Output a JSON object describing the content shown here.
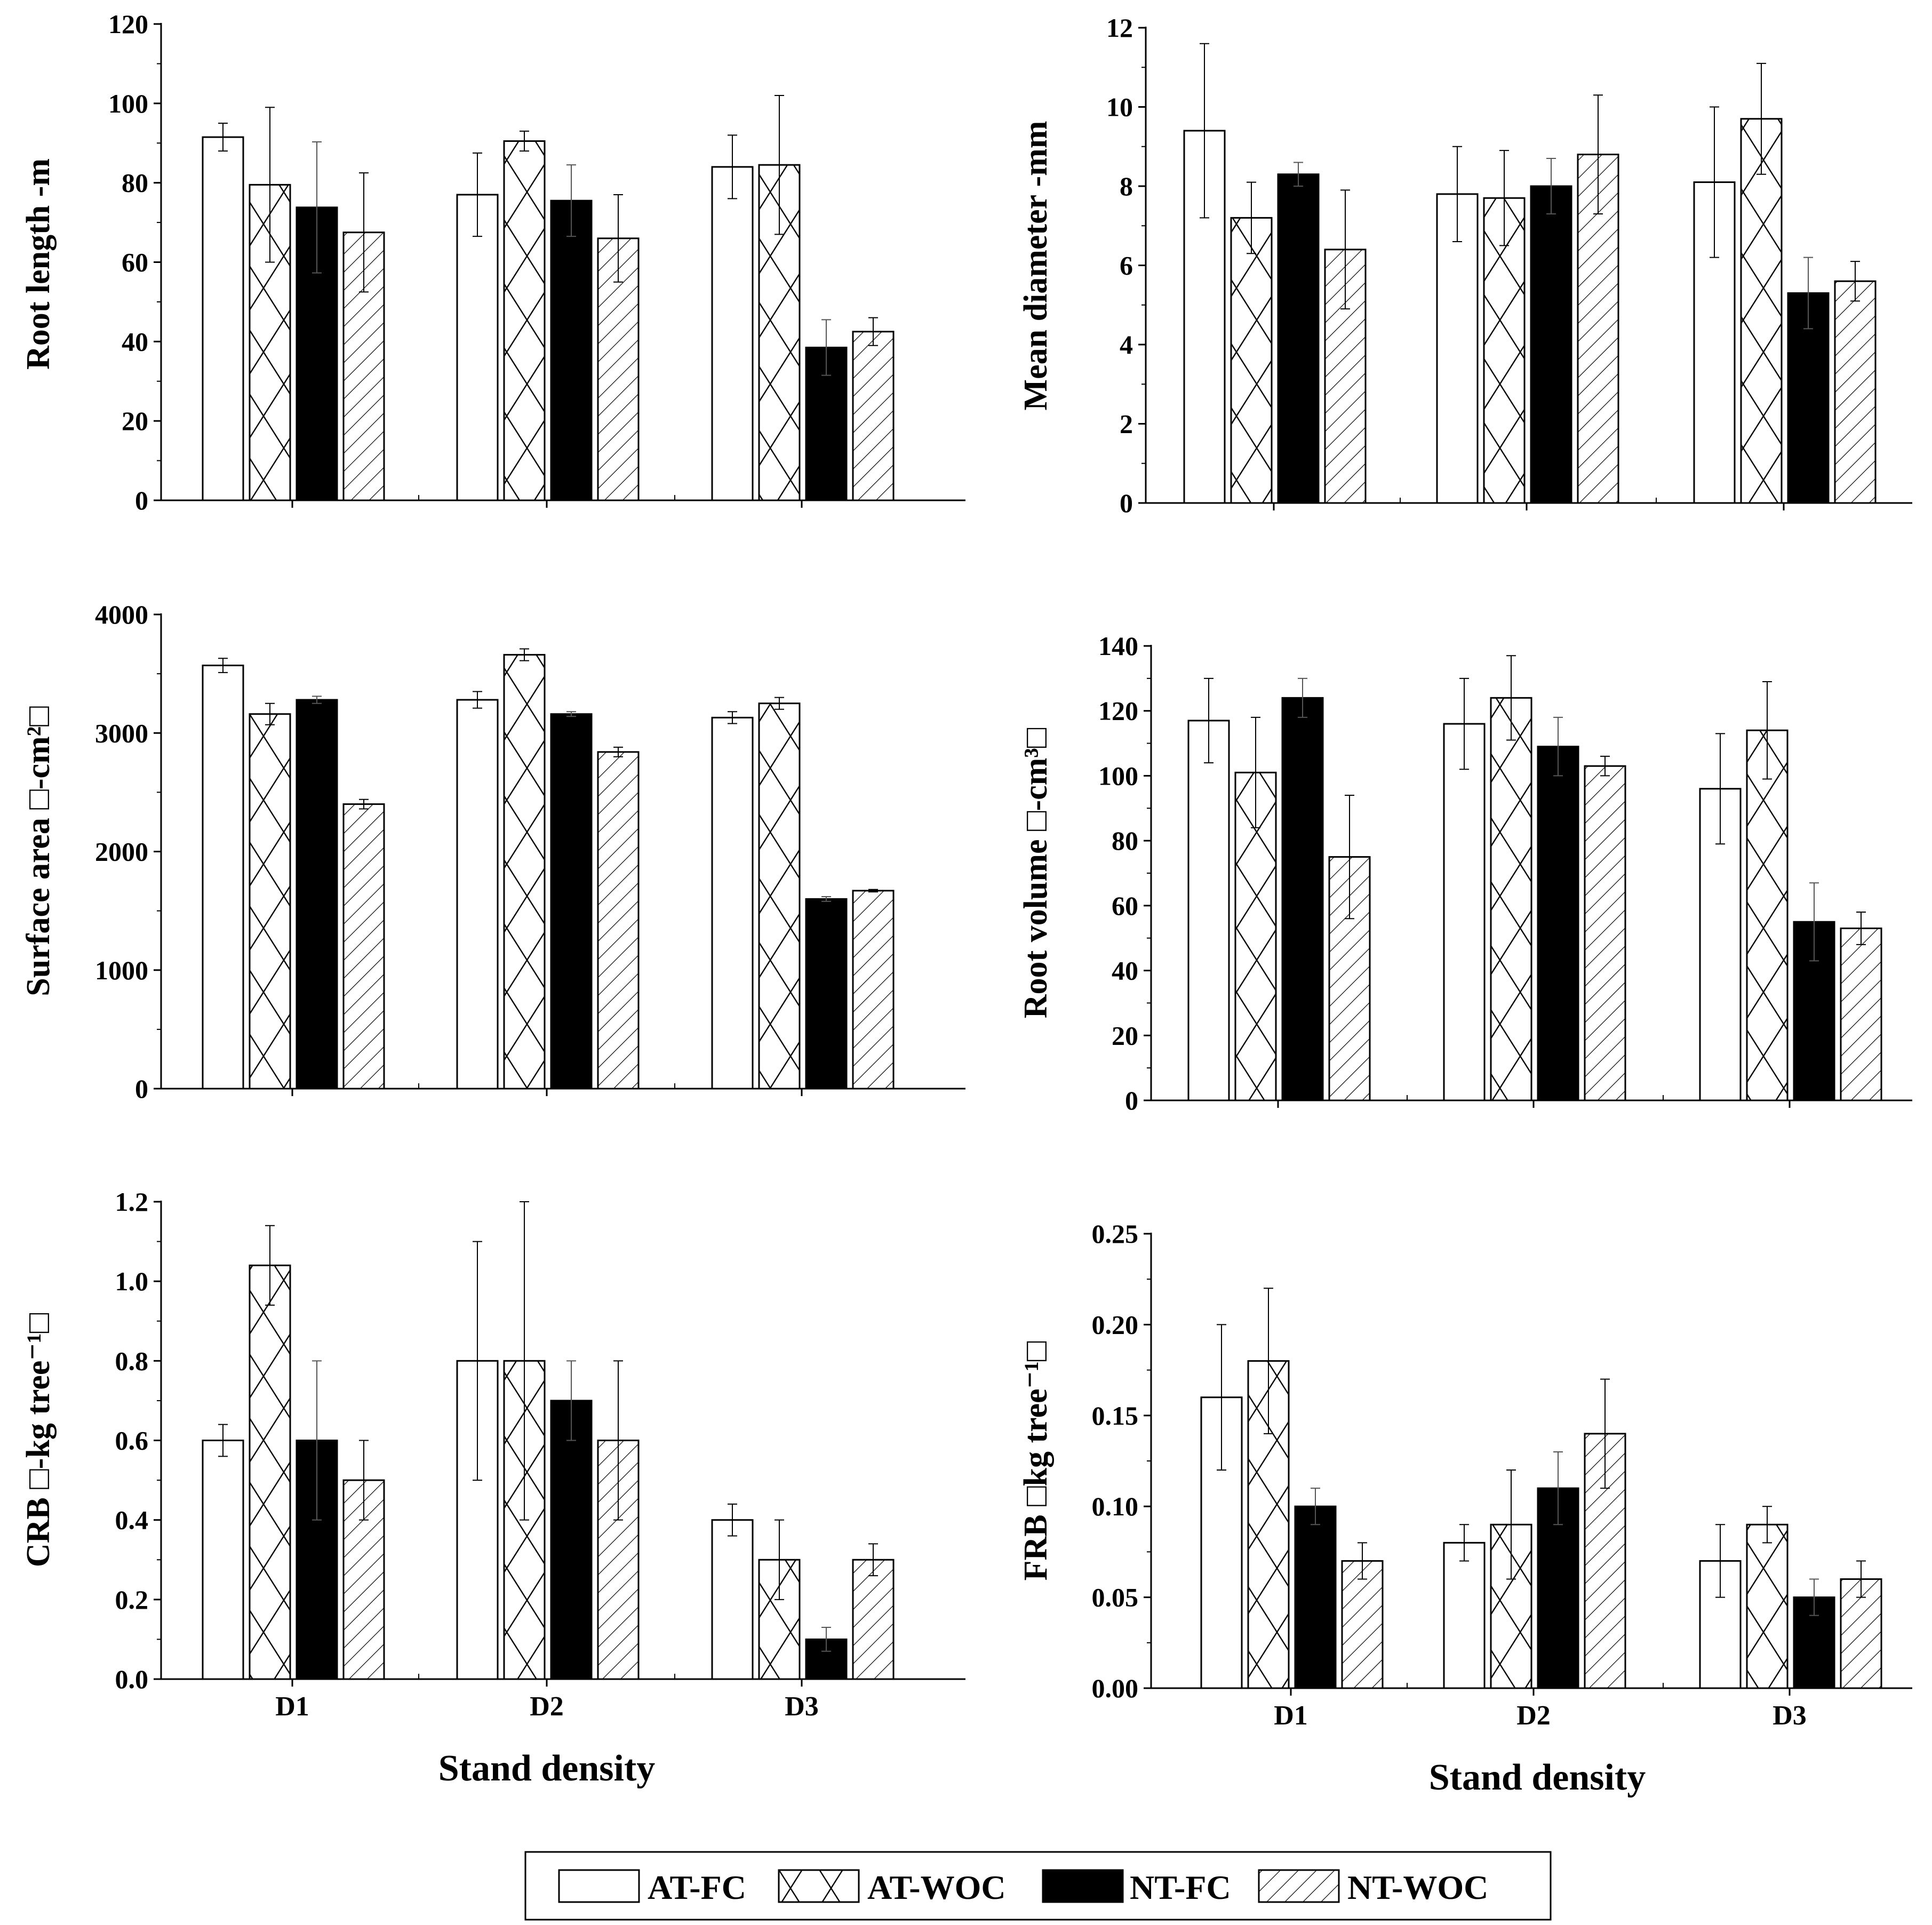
{
  "colors": {
    "ink": "#000000",
    "paper": "#ffffff"
  },
  "shared": {
    "categories": [
      "D1",
      "D2",
      "D3"
    ],
    "xlabel": "Stand density",
    "series_names": [
      "AT-FC",
      "AT-WOC",
      "NT-FC",
      "NT-WOC"
    ],
    "series_patterns": [
      "open",
      "crosshatch",
      "solid",
      "diagonal"
    ]
  },
  "legend": {
    "placement": "bottom-center",
    "items": [
      "AT-FC",
      "AT-WOC",
      "NT-FC",
      "NT-WOC"
    ]
  },
  "chart_data": [
    {
      "type": "bar",
      "panel": "top-left",
      "ylabel": "Root length -m",
      "ylim": [
        0,
        120
      ],
      "yticks": [
        0,
        20,
        40,
        60,
        80,
        100,
        120
      ],
      "ytick_labels": [
        "0",
        "20",
        "40",
        "60",
        "80",
        "100",
        "120"
      ],
      "xtick_labels": [],
      "categories": [
        "D1",
        "D2",
        "D3"
      ],
      "series": [
        {
          "name": "AT-FC",
          "values": [
            91.5,
            77,
            84
          ],
          "errors": [
            3.5,
            10.5,
            8
          ]
        },
        {
          "name": "AT-WOC",
          "values": [
            79.5,
            90.5,
            84.5
          ],
          "errors": [
            19.5,
            2.5,
            17.5
          ]
        },
        {
          "name": "NT-FC",
          "values": [
            73.8,
            75.5,
            38.5
          ],
          "errors": [
            16.5,
            9,
            7
          ]
        },
        {
          "name": "NT-WOC",
          "values": [
            67.5,
            66,
            42.5
          ],
          "errors": [
            15,
            11,
            3.5
          ]
        }
      ]
    },
    {
      "type": "bar",
      "panel": "top-right",
      "ylabel": "Mean diameter -mm",
      "ylim": [
        0,
        12
      ],
      "yticks": [
        0,
        2,
        4,
        6,
        8,
        10,
        12
      ],
      "ytick_labels": [
        "0",
        "2",
        "4",
        "6",
        "8",
        "10",
        "12"
      ],
      "xtick_labels": [],
      "categories": [
        "D1",
        "D2",
        "D3"
      ],
      "series": [
        {
          "name": "AT-FC",
          "values": [
            9.4,
            7.8,
            8.1
          ],
          "errors": [
            2.2,
            1.2,
            1.9
          ]
        },
        {
          "name": "AT-WOC",
          "values": [
            7.2,
            7.7,
            9.7
          ],
          "errors": [
            0.9,
            1.2,
            1.4
          ]
        },
        {
          "name": "NT-FC",
          "values": [
            8.3,
            8.0,
            5.3
          ],
          "errors": [
            0.3,
            0.7,
            0.9
          ]
        },
        {
          "name": "NT-WOC",
          "values": [
            6.4,
            8.8,
            5.6
          ],
          "errors": [
            1.5,
            1.5,
            0.5
          ]
        }
      ]
    },
    {
      "type": "bar",
      "panel": "middle-left",
      "ylabel": "Surface area □-cm²□",
      "ylim": [
        0,
        4000
      ],
      "yticks": [
        0,
        1000,
        2000,
        3000,
        4000
      ],
      "ytick_labels": [
        "0",
        "1000",
        "2000",
        "3000",
        "4000"
      ],
      "xtick_labels": [],
      "categories": [
        "D1",
        "D2",
        "D3"
      ],
      "series": [
        {
          "name": "AT-FC",
          "values": [
            3570,
            3280,
            3130
          ],
          "errors": [
            60,
            70,
            50
          ]
        },
        {
          "name": "AT-WOC",
          "values": [
            3160,
            3660,
            3250
          ],
          "errors": [
            90,
            50,
            50
          ]
        },
        {
          "name": "NT-FC",
          "values": [
            3280,
            3160,
            1600
          ],
          "errors": [
            30,
            20,
            20
          ]
        },
        {
          "name": "NT-WOC",
          "values": [
            2400,
            2840,
            1670
          ],
          "errors": [
            40,
            40,
            10
          ]
        }
      ]
    },
    {
      "type": "bar",
      "panel": "middle-right",
      "ylabel": "Root volume □-cm³□",
      "ylim": [
        0,
        140
      ],
      "yticks": [
        0,
        20,
        40,
        60,
        80,
        100,
        120,
        140
      ],
      "ytick_labels": [
        "0",
        "20",
        "40",
        "60",
        "80",
        "100",
        "120",
        "140"
      ],
      "xtick_labels": [],
      "categories": [
        "D1",
        "D2",
        "D3"
      ],
      "series": [
        {
          "name": "AT-FC",
          "values": [
            117,
            116,
            96
          ],
          "errors": [
            13,
            14,
            17
          ]
        },
        {
          "name": "AT-WOC",
          "values": [
            101,
            124,
            114
          ],
          "errors": [
            17,
            13,
            15
          ]
        },
        {
          "name": "NT-FC",
          "values": [
            124,
            109,
            55
          ],
          "errors": [
            6,
            9,
            12
          ]
        },
        {
          "name": "NT-WOC",
          "values": [
            75,
            103,
            53
          ],
          "errors": [
            19,
            3,
            5
          ]
        }
      ]
    },
    {
      "type": "bar",
      "panel": "bottom-left",
      "ylabel": "CRB □-kg tree⁻¹□",
      "ylim": [
        0,
        1.2
      ],
      "yticks": [
        0,
        0.2,
        0.4,
        0.6,
        0.8,
        1.0,
        1.2
      ],
      "ytick_labels": [
        "0.0",
        "0.2",
        "0.4",
        "0.6",
        "0.8",
        "1.0",
        "1.2"
      ],
      "xtick_labels": [
        "D1",
        "D2",
        "D3"
      ],
      "categories": [
        "D1",
        "D2",
        "D3"
      ],
      "series": [
        {
          "name": "AT-FC",
          "values": [
            0.6,
            0.8,
            0.4
          ],
          "errors": [
            0.04,
            0.3,
            0.04
          ]
        },
        {
          "name": "AT-WOC",
          "values": [
            1.04,
            0.8,
            0.3
          ],
          "errors": [
            0.1,
            0.4,
            0.1
          ]
        },
        {
          "name": "NT-FC",
          "values": [
            0.6,
            0.7,
            0.1
          ],
          "errors": [
            0.2,
            0.1,
            0.03
          ]
        },
        {
          "name": "NT-WOC",
          "values": [
            0.5,
            0.6,
            0.3
          ],
          "errors": [
            0.1,
            0.2,
            0.04
          ]
        }
      ]
    },
    {
      "type": "bar",
      "panel": "bottom-right",
      "ylabel": "FRB □kg tree⁻¹□",
      "ylim": [
        0,
        0.25
      ],
      "yticks": [
        0,
        0.05,
        0.1,
        0.15,
        0.2,
        0.25
      ],
      "ytick_labels": [
        "0.00",
        "0.05",
        "0.10",
        "0.15",
        "0.20",
        "0.25"
      ],
      "xtick_labels": [
        "D1",
        "D2",
        "D3"
      ],
      "categories": [
        "D1",
        "D2",
        "D3"
      ],
      "series": [
        {
          "name": "AT-FC",
          "values": [
            0.16,
            0.08,
            0.07
          ],
          "errors": [
            0.04,
            0.01,
            0.02
          ]
        },
        {
          "name": "AT-WOC",
          "values": [
            0.18,
            0.09,
            0.09
          ],
          "errors": [
            0.04,
            0.03,
            0.01
          ]
        },
        {
          "name": "NT-FC",
          "values": [
            0.1,
            0.11,
            0.05
          ],
          "errors": [
            0.01,
            0.02,
            0.01
          ]
        },
        {
          "name": "NT-WOC",
          "values": [
            0.07,
            0.14,
            0.06
          ],
          "errors": [
            0.01,
            0.03,
            0.01
          ]
        }
      ]
    }
  ]
}
